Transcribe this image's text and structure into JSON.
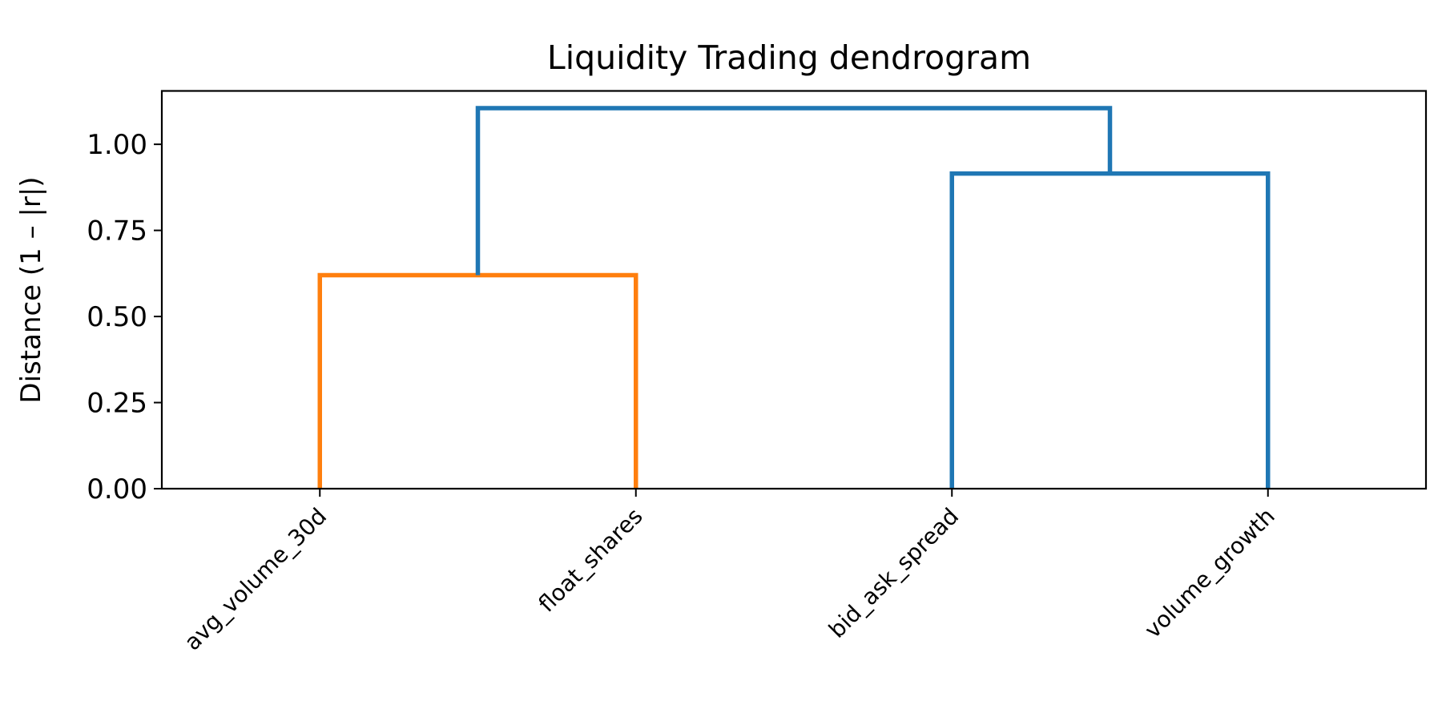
{
  "chart_data": {
    "type": "dendrogram",
    "title": "Liquidity Trading dendrogram",
    "xlabel": "",
    "ylabel": "Distance (1 – |r|)",
    "ylim": [
      0,
      1.155
    ],
    "yticks": [
      0.0,
      0.25,
      0.5,
      0.75,
      1.0
    ],
    "ytick_labels": [
      "0.00",
      "0.25",
      "0.50",
      "0.75",
      "1.00"
    ],
    "grid": false,
    "leaves": [
      "avg_volume_30d",
      "float_shares",
      "bid_ask_spread",
      "volume_growth"
    ],
    "links": [
      {
        "left": "avg_volume_30d",
        "right": "float_shares",
        "distance": 0.62,
        "color": "#ff7f0e"
      },
      {
        "left": "bid_ask_spread",
        "right": "volume_growth",
        "distance": 0.915,
        "color": "#1f77b4"
      },
      {
        "left": "cluster(avg_volume_30d, float_shares)",
        "right": "cluster(bid_ask_spread, volume_growth)",
        "distance": 1.105,
        "color": "#1f77b4"
      }
    ],
    "colors": {
      "cluster_1": "#ff7f0e",
      "above_threshold": "#1f77b4"
    }
  }
}
